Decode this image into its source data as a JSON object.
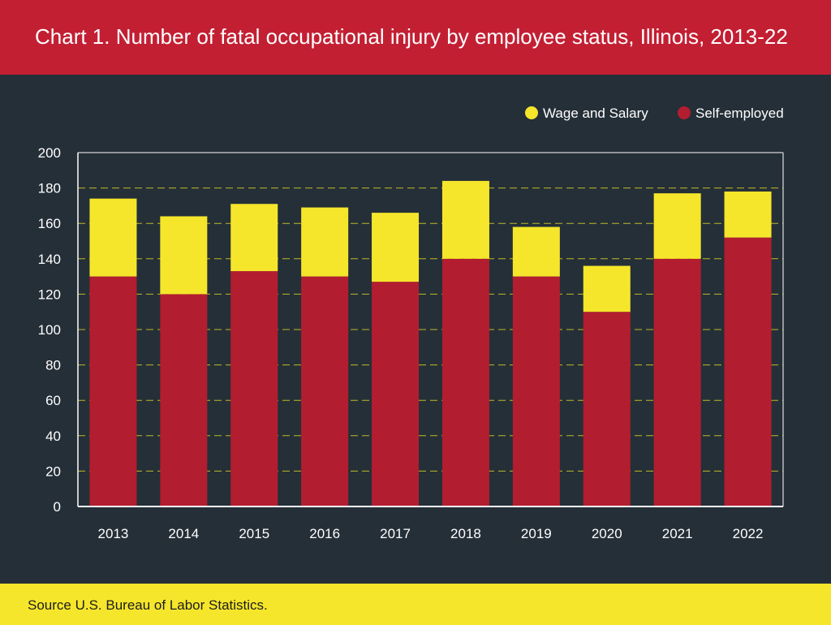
{
  "title": "Chart 1. Number of fatal occupational injury by employee status, Illinois, 2013-22",
  "source": "Source U.S. Bureau of Labor Statistics.",
  "colors": {
    "header": "#c31f33",
    "background": "#252f38",
    "footer": "#f5e62b",
    "self_employed": "#b31d30",
    "wage_and_salary": "#f5e62b",
    "gridline": "#d8d224"
  },
  "chart_data": {
    "type": "bar",
    "stacked": true,
    "categories": [
      "2013",
      "2014",
      "2015",
      "2016",
      "2017",
      "2018",
      "2019",
      "2020",
      "2021",
      "2022"
    ],
    "series": [
      {
        "name": "Self-employed",
        "color": "#b31d30",
        "values": [
          130,
          120,
          133,
          130,
          127,
          140,
          130,
          110,
          140,
          152
        ]
      },
      {
        "name": "Wage and Salary",
        "color": "#f5e62b",
        "values": [
          44,
          44,
          38,
          39,
          39,
          44,
          28,
          26,
          37,
          26
        ]
      }
    ],
    "legend": [
      "Wage and Salary",
      "Self-employed"
    ],
    "legend_position": "top-right",
    "ylim": [
      0,
      200
    ],
    "yticks": [
      0,
      20,
      40,
      60,
      80,
      100,
      120,
      140,
      160,
      180,
      200
    ],
    "grid": true,
    "xlabel": "",
    "ylabel": ""
  }
}
